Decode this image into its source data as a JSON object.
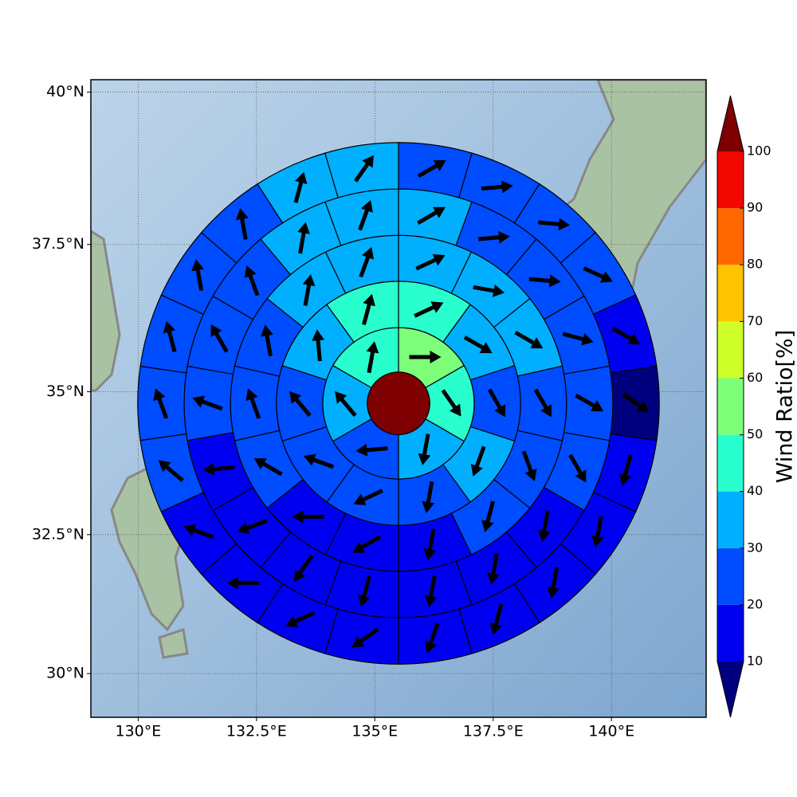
{
  "chart_data": {
    "type": "polar-grid-map",
    "projection": "mercator",
    "xlim": [
      129,
      142
    ],
    "ylim": [
      29.2,
      40.2
    ],
    "xticks": [
      {
        "value": 130,
        "label": "130°E"
      },
      {
        "value": 132.5,
        "label": "132.5°E"
      },
      {
        "value": 135,
        "label": "135°E"
      },
      {
        "value": 137.5,
        "label": "137.5°E"
      },
      {
        "value": 140,
        "label": "140°E"
      }
    ],
    "yticks": [
      {
        "value": 30,
        "label": "30°N"
      },
      {
        "value": 32.5,
        "label": "32.5°N"
      },
      {
        "value": 35,
        "label": "35°N"
      },
      {
        "value": 37.5,
        "label": "37.5°N"
      },
      {
        "value": 40,
        "label": "40°N"
      }
    ],
    "grid": true,
    "center": [
      135.5,
      34.8
    ],
    "center_color": "#7f0000",
    "ring_radii": [
      0.66,
      1.6,
      2.58,
      3.55,
      4.53,
      5.51
    ],
    "rings": [
      {
        "values": [
          55,
          45,
          35,
          25,
          35,
          45
        ],
        "directions": [
          90,
          145,
          190,
          265,
          320,
          10
        ]
      },
      {
        "values": [
          45,
          35,
          25,
          35,
          25,
          25,
          25,
          25,
          35,
          45
        ],
        "directions": [
          65,
          120,
          150,
          200,
          190,
          245,
          290,
          320,
          355,
          15
        ]
      },
      {
        "values": [
          35,
          35,
          35,
          25,
          25,
          25,
          15,
          15,
          15,
          25,
          25,
          25,
          35,
          35
        ],
        "directions": [
          65,
          100,
          120,
          150,
          160,
          195,
          190,
          240,
          270,
          300,
          340,
          350,
          10,
          20
        ]
      },
      {
        "values": [
          35,
          25,
          25,
          25,
          25,
          25,
          15,
          15,
          15,
          15,
          15,
          15,
          15,
          25,
          25,
          25,
          35,
          35
        ],
        "directions": [
          60,
          85,
          95,
          105,
          120,
          150,
          190,
          190,
          190,
          195,
          215,
          250,
          265,
          290,
          330,
          340,
          10,
          20
        ]
      },
      {
        "values": [
          25,
          25,
          25,
          25,
          15,
          5,
          15,
          15,
          15,
          15,
          15,
          15,
          15,
          15,
          15,
          25,
          25,
          25,
          25,
          25,
          35,
          35
        ],
        "directions": [
          60,
          85,
          95,
          115,
          120,
          125,
          195,
          190,
          190,
          195,
          200,
          235,
          245,
          270,
          290,
          310,
          340,
          345,
          350,
          350,
          15,
          35
        ]
      }
    ],
    "colorbar": {
      "label": "Wind Ratio[%]",
      "levels": [
        10,
        20,
        30,
        40,
        50,
        60,
        70,
        80,
        90,
        100
      ],
      "colors": [
        "#0000f1",
        "#004cff",
        "#00b0ff",
        "#29ffce",
        "#7dff7a",
        "#ceff29",
        "#ffc400",
        "#ff6800",
        "#f10800"
      ],
      "under_color": "#00007f",
      "over_color": "#7f0000"
    }
  }
}
